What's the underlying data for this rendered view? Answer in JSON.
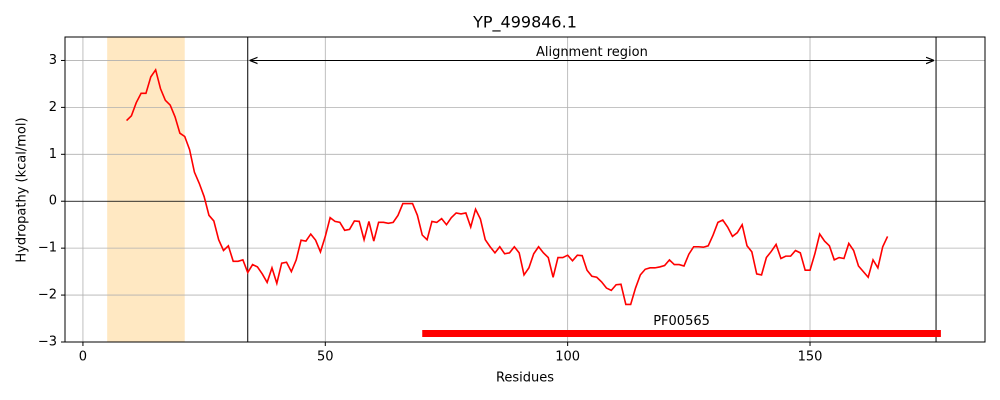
{
  "chart_data": {
    "type": "line",
    "title": "YP_499846.1",
    "x_label": "Residues",
    "y_label": "Hydropathy (kcal/mol)",
    "color": "#ff0000",
    "xlim": [
      -3.7,
      186.1
    ],
    "ylim": [
      -3,
      3.5
    ],
    "xticks": [
      0,
      50,
      100,
      150
    ],
    "yticks": [
      {
        "value": -3,
        "label": "−3"
      },
      {
        "value": -2,
        "label": "−2"
      },
      {
        "value": -1,
        "label": "−1"
      },
      0,
      1,
      2,
      3
    ],
    "grid": true,
    "hline": 0,
    "highlight": [
      5,
      21
    ],
    "highlight_color": "#ffe8c2",
    "vlines": [
      34,
      176
    ],
    "alignment": {
      "text": "Alignment region",
      "x_range": [
        34,
        176
      ],
      "y": 3
    },
    "domain": {
      "label": "PF00565",
      "x_range": [
        70,
        177
      ],
      "y": -2.82,
      "color": "#ff0000"
    },
    "x": [
      9,
      10,
      11,
      12,
      13,
      14,
      15,
      16,
      17,
      18,
      19,
      20,
      21,
      22,
      23,
      24,
      25,
      26,
      27,
      28,
      29,
      30,
      31,
      32,
      33,
      34,
      35,
      36,
      37,
      38,
      39,
      40,
      41,
      42,
      43,
      44,
      45,
      46,
      47,
      48,
      49,
      50,
      51,
      52,
      53,
      54,
      55,
      56,
      57,
      58,
      59,
      60,
      61,
      62,
      63,
      64,
      65,
      66,
      67,
      68,
      69,
      70,
      71,
      72,
      73,
      74,
      75,
      76,
      77,
      78,
      79,
      80,
      81,
      82,
      83,
      84,
      85,
      86,
      87,
      88,
      89,
      90,
      91,
      92,
      93,
      94,
      95,
      96,
      97,
      98,
      99,
      100,
      101,
      102,
      103,
      104,
      105,
      106,
      107,
      108,
      109,
      110,
      111,
      112,
      113,
      114,
      115,
      116,
      117,
      118,
      119,
      120,
      121,
      122,
      123,
      124,
      125,
      126,
      127,
      128,
      129,
      130,
      131,
      132,
      133,
      134,
      135,
      136,
      137,
      138,
      139,
      140,
      141,
      142,
      143,
      144,
      145,
      146,
      147,
      148,
      149,
      150,
      151,
      152,
      153,
      154,
      155,
      156,
      157,
      158,
      159,
      160,
      161,
      162,
      163,
      164,
      165,
      166
    ],
    "values": [
      1.72,
      1.82,
      2.1,
      2.3,
      2.3,
      2.65,
      2.8,
      2.4,
      2.15,
      2.05,
      1.8,
      1.45,
      1.38,
      1.1,
      0.62,
      0.38,
      0.1,
      -0.3,
      -0.42,
      -0.82,
      -1.05,
      -0.95,
      -1.28,
      -1.28,
      -1.25,
      -1.52,
      -1.35,
      -1.4,
      -1.55,
      -1.73,
      -1.42,
      -1.75,
      -1.32,
      -1.3,
      -1.5,
      -1.25,
      -0.83,
      -0.85,
      -0.7,
      -0.83,
      -1.08,
      -0.75,
      -0.35,
      -0.43,
      -0.45,
      -0.62,
      -0.6,
      -0.42,
      -0.43,
      -0.82,
      -0.43,
      -0.85,
      -0.45,
      -0.45,
      -0.47,
      -0.45,
      -0.3,
      -0.05,
      -0.05,
      -0.05,
      -0.3,
      -0.72,
      -0.82,
      -0.43,
      -0.45,
      -0.37,
      -0.5,
      -0.35,
      -0.25,
      -0.27,
      -0.25,
      -0.55,
      -0.17,
      -0.38,
      -0.82,
      -0.97,
      -1.1,
      -0.97,
      -1.12,
      -1.1,
      -0.97,
      -1.1,
      -1.57,
      -1.42,
      -1.12,
      -0.97,
      -1.1,
      -1.2,
      -1.62,
      -1.2,
      -1.2,
      -1.15,
      -1.27,
      -1.15,
      -1.16,
      -1.47,
      -1.6,
      -1.62,
      -1.72,
      -1.85,
      -1.9,
      -1.78,
      -1.77,
      -2.2,
      -2.2,
      -1.85,
      -1.57,
      -1.45,
      -1.42,
      -1.42,
      -1.4,
      -1.37,
      -1.25,
      -1.35,
      -1.35,
      -1.38,
      -1.13,
      -0.97,
      -0.97,
      -0.98,
      -0.95,
      -0.72,
      -0.45,
      -0.4,
      -0.55,
      -0.75,
      -0.67,
      -0.5,
      -0.95,
      -1.08,
      -1.55,
      -1.57,
      -1.2,
      -1.07,
      -0.92,
      -1.22,
      -1.17,
      -1.17,
      -1.05,
      -1.1,
      -1.47,
      -1.47,
      -1.12,
      -0.7,
      -0.85,
      -0.95,
      -1.25,
      -1.2,
      -1.22,
      -0.9,
      -1.05,
      -1.38,
      -1.5,
      -1.62,
      -1.25,
      -1.42,
      -0.97,
      -0.75
    ]
  }
}
